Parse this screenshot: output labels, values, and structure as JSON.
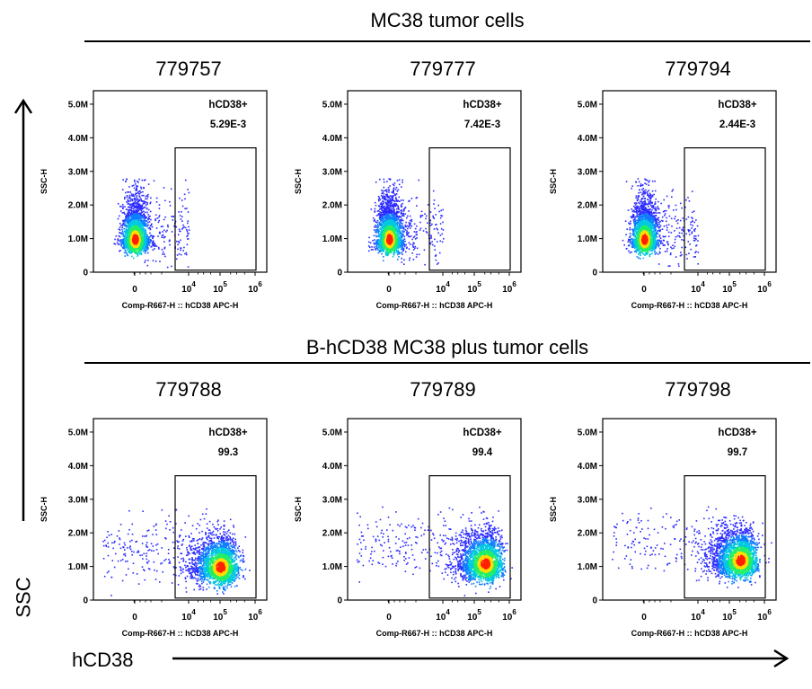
{
  "groups": [
    {
      "title": "MC38 tumor cells"
    },
    {
      "title": "B-hCD38 MC38 plus tumor cells"
    }
  ],
  "axes": {
    "y_label": "SSC",
    "x_label": "hCD38"
  },
  "colors": {
    "low_density": "#2b2bff",
    "mid_density": "#00c8e0",
    "high_density": "#ffdd00",
    "peak_density": "#ff2200",
    "gate_stroke": "#000000"
  },
  "chart_data": [
    {
      "type": "scatter",
      "panel": "779757",
      "gate_label": "hCD38+",
      "gate_value": "5.29E-3",
      "xlabel": "Comp-R667-H :: hCD38 APC-H",
      "ylabel": "SSC-H",
      "xticks": [
        "0",
        "10^4",
        "10^5",
        "10^6"
      ],
      "yticks": [
        "0",
        "1.0M",
        "2.0M",
        "3.0M",
        "4.0M",
        "5.0M"
      ],
      "ylim": [
        0,
        5400000
      ],
      "population_center": {
        "x": 0,
        "y": 1000000
      },
      "population": "negative"
    },
    {
      "type": "scatter",
      "panel": "779777",
      "gate_label": "hCD38+",
      "gate_value": "7.42E-3",
      "xlabel": "Comp-R667-H :: hCD38 APC-H",
      "ylabel": "SSC-H",
      "xticks": [
        "0",
        "10^4",
        "10^5",
        "10^6"
      ],
      "yticks": [
        "0",
        "1.0M",
        "2.0M",
        "3.0M",
        "4.0M",
        "5.0M"
      ],
      "ylim": [
        0,
        5400000
      ],
      "population_center": {
        "x": 0,
        "y": 1000000
      },
      "population": "negative"
    },
    {
      "type": "scatter",
      "panel": "779794",
      "gate_label": "hCD38+",
      "gate_value": "2.44E-3",
      "xlabel": "Comp-R667-H :: hCD38 APC-H",
      "ylabel": "SSC-H",
      "xticks": [
        "0",
        "10^4",
        "10^5",
        "10^6"
      ],
      "yticks": [
        "0",
        "1.0M",
        "2.0M",
        "3.0M",
        "4.0M",
        "5.0M"
      ],
      "ylim": [
        0,
        5400000
      ],
      "population_center": {
        "x": 0,
        "y": 1000000
      },
      "population": "negative"
    },
    {
      "type": "scatter",
      "panel": "779788",
      "gate_label": "hCD38+",
      "gate_value": "99.3",
      "xlabel": "Comp-R667-H :: hCD38 APC-H",
      "ylabel": "SSC-H",
      "xticks": [
        "0",
        "10^4",
        "10^5",
        "10^6"
      ],
      "yticks": [
        "0",
        "1.0M",
        "2.0M",
        "3.0M",
        "4.0M",
        "5.0M"
      ],
      "ylim": [
        0,
        5400000
      ],
      "population_center": {
        "x": 100000,
        "y": 1000000
      },
      "population": "positive"
    },
    {
      "type": "scatter",
      "panel": "779789",
      "gate_label": "hCD38+",
      "gate_value": "99.4",
      "xlabel": "Comp-R667-H :: hCD38 APC-H",
      "ylabel": "SSC-H",
      "xticks": [
        "0",
        "10^4",
        "10^5",
        "10^6"
      ],
      "yticks": [
        "0",
        "1.0M",
        "2.0M",
        "3.0M",
        "4.0M",
        "5.0M"
      ],
      "ylim": [
        0,
        5400000
      ],
      "population_center": {
        "x": 200000,
        "y": 1100000
      },
      "population": "positive"
    },
    {
      "type": "scatter",
      "panel": "779798",
      "gate_label": "hCD38+",
      "gate_value": "99.7",
      "xlabel": "Comp-R667-H :: hCD38 APC-H",
      "ylabel": "SSC-H",
      "xticks": [
        "0",
        "10^4",
        "10^5",
        "10^6"
      ],
      "yticks": [
        "0",
        "1.0M",
        "2.0M",
        "3.0M",
        "4.0M",
        "5.0M"
      ],
      "ylim": [
        0,
        5400000
      ],
      "population_center": {
        "x": 200000,
        "y": 1200000
      },
      "population": "positive"
    }
  ]
}
